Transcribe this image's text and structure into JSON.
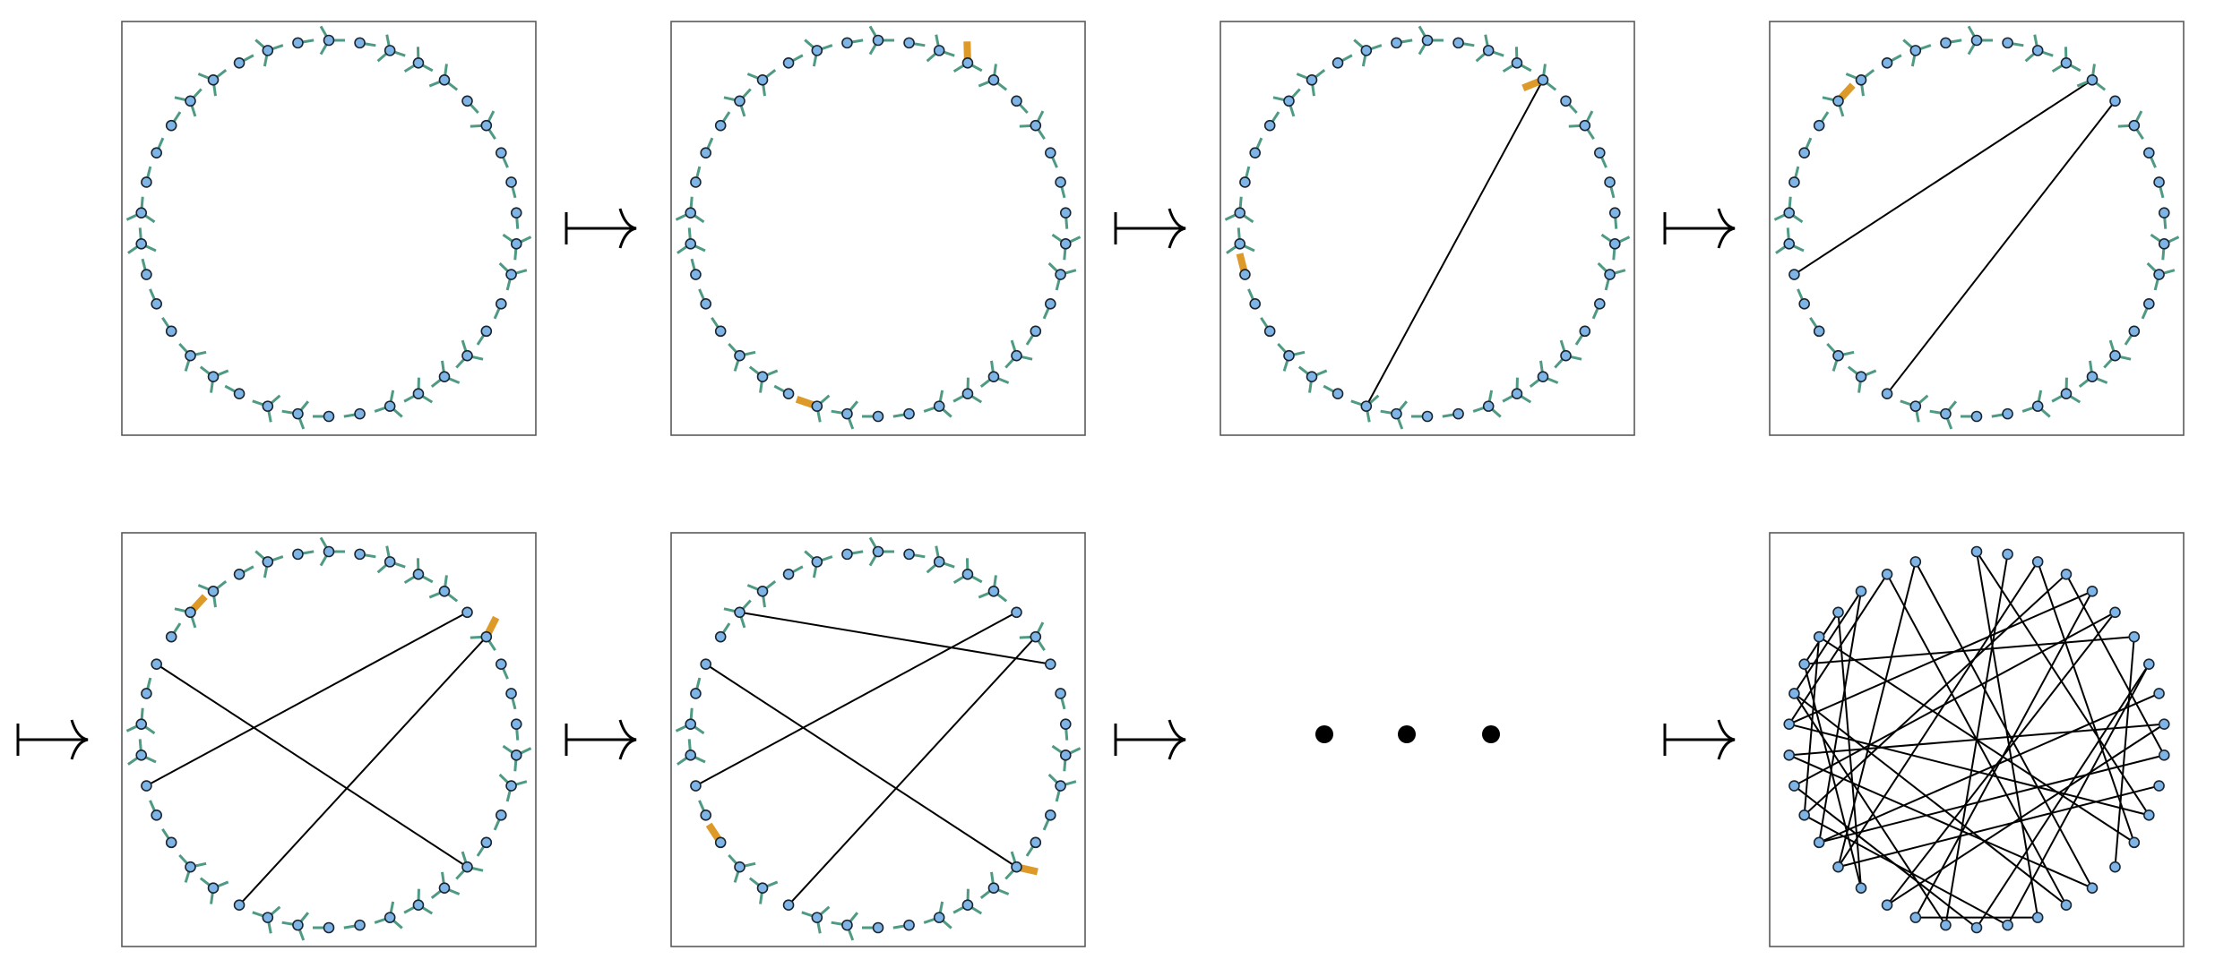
{
  "colors": {
    "node_fill": "#7fb5e6",
    "node_stroke": "#1b2530",
    "stub": "#4f9a84",
    "active_stub": "#dd9a29",
    "edge": "#000000",
    "frame": "#5a5a5a"
  },
  "node_count": 38,
  "stub_degrees": [
    3,
    1,
    3,
    3,
    3,
    1,
    3,
    1,
    1,
    1,
    3,
    3,
    1,
    1,
    3,
    3,
    3,
    3,
    1,
    1,
    3,
    3,
    1,
    3,
    3,
    1,
    1,
    1,
    3,
    3,
    1,
    1,
    1,
    3,
    3,
    1,
    3,
    1
  ],
  "steps": [
    {
      "edges": [],
      "active": []
    },
    {
      "edges": [],
      "active": [
        [
          3,
          2
        ],
        [
          21,
          0
        ]
      ]
    },
    {
      "edges": [
        [
          4,
          21
        ]
      ],
      "active": [
        [
          4,
          1
        ],
        [
          27,
          0
        ]
      ]
    },
    {
      "edges": [
        [
          4,
          27
        ],
        [
          5,
          22
        ]
      ],
      "active": [
        [
          18,
          2
        ],
        [
          33,
          0
        ]
      ]
    },
    {
      "edges": [
        [
          5,
          27
        ],
        [
          6,
          22
        ],
        [
          14,
          31
        ]
      ],
      "active": [
        [
          6,
          2
        ],
        [
          33,
          0
        ]
      ]
    },
    {
      "edges": [
        [
          5,
          27
        ],
        [
          6,
          22
        ],
        [
          14,
          31
        ],
        [
          7,
          33
        ]
      ],
      "active": [
        [
          14,
          2
        ],
        [
          25,
          0
        ]
      ]
    }
  ],
  "final_edges": [
    [
      0,
      12
    ],
    [
      0,
      17
    ],
    [
      1,
      20
    ],
    [
      2,
      13
    ],
    [
      2,
      24
    ],
    [
      3,
      10
    ],
    [
      3,
      26
    ],
    [
      4,
      29
    ],
    [
      4,
      21
    ],
    [
      5,
      22
    ],
    [
      5,
      27
    ],
    [
      6,
      14
    ],
    [
      6,
      31
    ],
    [
      7,
      18
    ],
    [
      7,
      19
    ],
    [
      8,
      25
    ],
    [
      9,
      22
    ],
    [
      9,
      28
    ],
    [
      10,
      25
    ],
    [
      11,
      24
    ],
    [
      12,
      29
    ],
    [
      13,
      32
    ],
    [
      15,
      28
    ],
    [
      15,
      36
    ],
    [
      16,
      35
    ],
    [
      16,
      30
    ],
    [
      17,
      21
    ],
    [
      18,
      26
    ],
    [
      19,
      27
    ],
    [
      20,
      30
    ],
    [
      23,
      31
    ],
    [
      23,
      33
    ],
    [
      24,
      36
    ],
    [
      25,
      34
    ],
    [
      26,
      32
    ],
    [
      29,
      35
    ],
    [
      30,
      34
    ],
    [
      31,
      33
    ]
  ],
  "ellipsis": [
    "•",
    "•",
    "•"
  ],
  "map_arrow_count": 7
}
